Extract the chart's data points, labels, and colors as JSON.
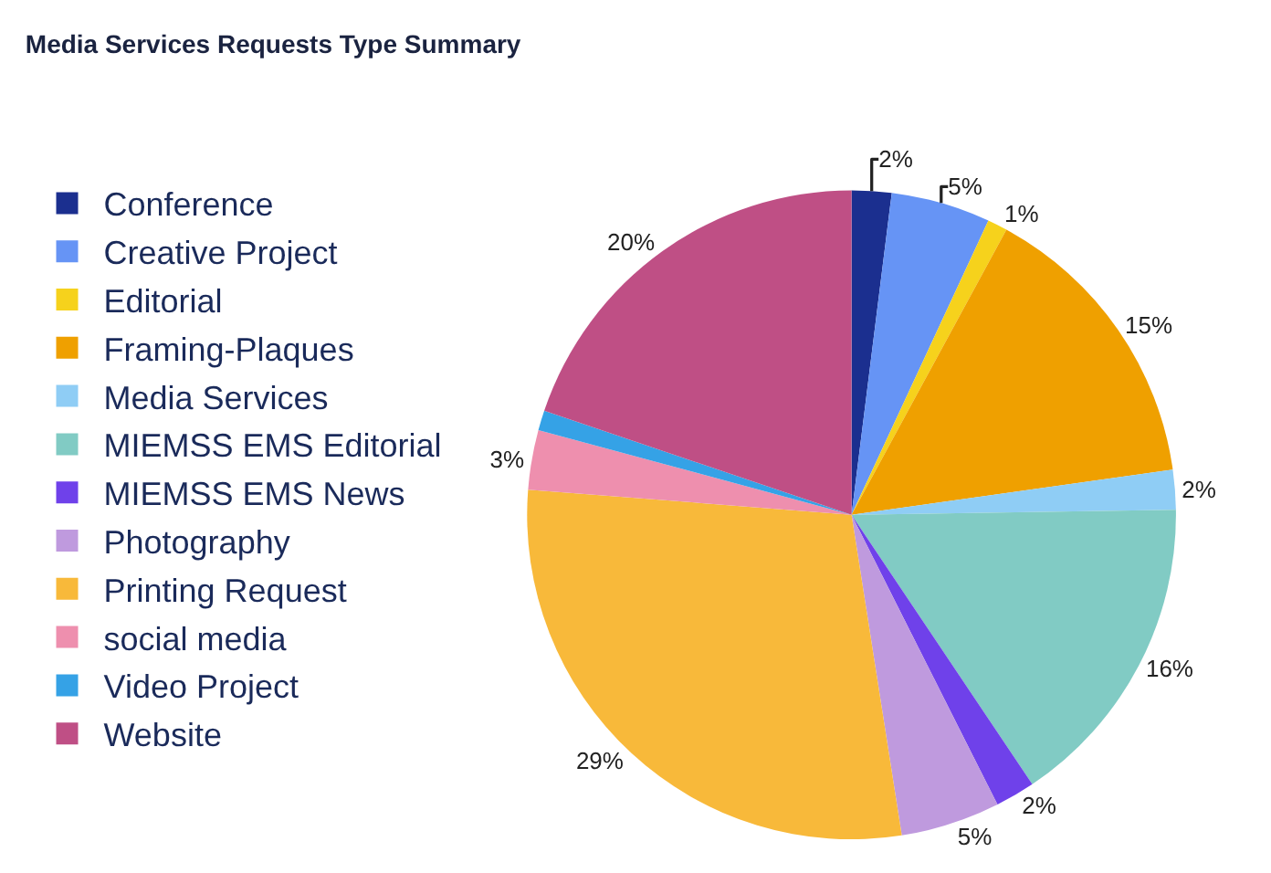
{
  "chart_data": {
    "type": "pie",
    "title": "Media Services Requests Type Summary",
    "categories": [
      "Conference",
      "Creative Project",
      "Editorial",
      "Framing-Plaques",
      "Media Services",
      "MIEMSS EMS Editorial",
      "MIEMSS EMS News",
      "Photography",
      "Printing Request",
      "social media",
      "Video Project",
      "Website"
    ],
    "values": [
      2,
      5,
      1,
      15,
      2,
      16,
      2,
      5,
      29,
      3,
      1,
      20
    ],
    "value_labels": [
      "2%",
      "5%",
      "1%",
      "15%",
      "2%",
      "16%",
      "2%",
      "5%",
      "29%",
      "3%",
      null,
      "20%"
    ],
    "colors": [
      "#1b2f8f",
      "#6694f5",
      "#f6d21c",
      "#efa000",
      "#8fcdf5",
      "#81cbc4",
      "#6f41ea",
      "#bf9ade",
      "#f8b93a",
      "#ee8fae",
      "#35a2e6",
      "#bf4f85"
    ],
    "legend": "left"
  }
}
